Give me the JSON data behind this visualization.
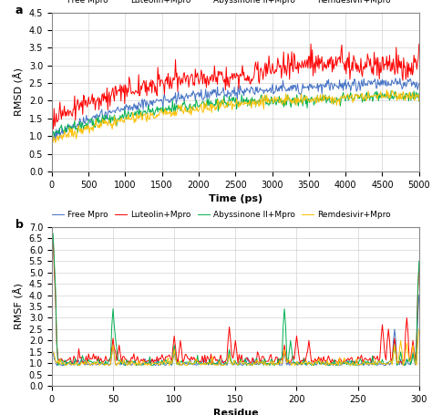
{
  "panel_a": {
    "title_label": "a",
    "xlabel": "Time (ps)",
    "ylabel": "RMSD (Å)",
    "xlim": [
      0,
      5000
    ],
    "ylim": [
      0,
      4.5
    ],
    "yticks": [
      0,
      0.5,
      1.0,
      1.5,
      2.0,
      2.5,
      3.0,
      3.5,
      4.0,
      4.5
    ],
    "xticks": [
      0,
      500,
      1000,
      1500,
      2000,
      2500,
      3000,
      3500,
      4000,
      4500,
      5000
    ],
    "legend_labels": [
      "Free Mpro",
      "Luteolin+Mpro",
      "Abyssinone II+Mpro",
      "Remdesivir+Mpro"
    ],
    "line_colors": [
      "#4472C4",
      "#FF0000",
      "#00B050",
      "#FFC000"
    ],
    "line_width": 0.7
  },
  "panel_b": {
    "title_label": "b",
    "xlabel": "Residue",
    "ylabel": "RMSF (Å)",
    "xlim": [
      0,
      300
    ],
    "ylim": [
      0,
      7
    ],
    "yticks": [
      0,
      0.5,
      1.0,
      1.5,
      2.0,
      2.5,
      3.0,
      3.5,
      4.0,
      4.5,
      5.0,
      5.5,
      6.0,
      6.5,
      7.0
    ],
    "xticks": [
      0,
      50,
      100,
      150,
      200,
      250,
      300
    ],
    "legend_labels": [
      "Free Mpro",
      "Luteolin+Mpro",
      "Abyssinone II+Mpro",
      "Remdesivir+Mpro"
    ],
    "line_colors": [
      "#4472C4",
      "#FF0000",
      "#00B050",
      "#FFC000"
    ],
    "line_width": 0.7
  },
  "figure_bg": "#FFFFFF",
  "axes_bg": "#FFFFFF",
  "grid_color": "#C0C0C0",
  "grid_alpha": 0.7,
  "grid_linewidth": 0.5,
  "font_size_label": 8,
  "font_size_tick": 7,
  "font_size_legend": 6.5,
  "font_size_panel_label": 9
}
